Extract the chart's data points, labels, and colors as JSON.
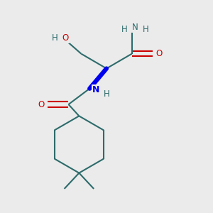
{
  "background_color": "#ebebeb",
  "bond_color": "#2d6b6b",
  "nitrogen_color": "#0000ee",
  "oxygen_color": "#cc0000",
  "line_width": 1.5,
  "figsize": [
    3.0,
    3.0
  ],
  "dpi": 100,
  "xlim": [
    0,
    10
  ],
  "ylim": [
    0,
    10
  ]
}
